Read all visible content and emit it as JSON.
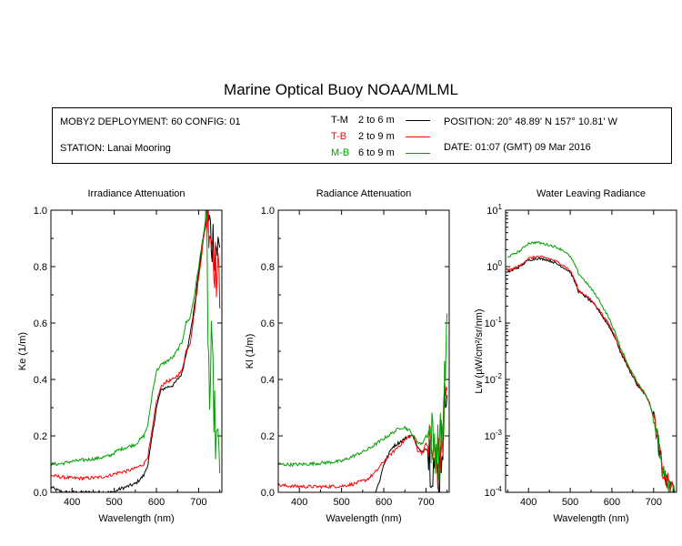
{
  "title": "Marine Optical Buoy NOAA/MLML",
  "info": {
    "deployment": "MOBY2 DEPLOYMENT: 60 CONFIG: 01",
    "station": "STATION: Lanai Mooring",
    "position": "POSITION: 20° 48.89' N   157° 10.81' W",
    "date": "DATE: 01:07 (GMT) 09 Mar 2016"
  },
  "legend": [
    {
      "code": "T-M",
      "range": "2 to 6  m",
      "color": "#000000"
    },
    {
      "code": "T-B",
      "range": "2 to 9  m",
      "color": "#ff0000"
    },
    {
      "code": "M-B",
      "range": "6 to 9  m",
      "color": "#00a000"
    }
  ],
  "chart_data": [
    {
      "type": "line",
      "title": "Irradiance Attenuation",
      "xlabel": "Wavelength (nm)",
      "ylabel": "Ke  (1/m)",
      "xlim": [
        350,
        755
      ],
      "ylim": [
        0,
        1.0
      ],
      "xticks": [
        400,
        500,
        600,
        700
      ],
      "yticks": [
        0.0,
        0.2,
        0.4,
        0.6,
        0.8,
        1.0
      ],
      "ytick_labels": [
        "0.0",
        "0.2",
        "0.4",
        "0.6",
        "0.8",
        "1.0"
      ],
      "series": [
        {
          "name": "T-M",
          "color": "#000000",
          "x": [
            350,
            360,
            370,
            380,
            400,
            430,
            460,
            490,
            500,
            510,
            530,
            550,
            570,
            580,
            590,
            600,
            610,
            620,
            640,
            660,
            680,
            690,
            700,
            710,
            720,
            725,
            730,
            740,
            750
          ],
          "y": [
            0.02,
            0.01,
            0.005,
            0.0,
            0.0,
            0.0,
            0.0,
            0.0,
            0.0,
            0.01,
            0.02,
            0.03,
            0.06,
            0.1,
            0.2,
            0.3,
            0.36,
            0.37,
            0.38,
            0.42,
            0.56,
            0.66,
            0.78,
            0.9,
            0.98,
            0.95,
            0.9,
            0.88,
            0.85
          ],
          "noise_from": 720
        },
        {
          "name": "T-B",
          "color": "#ff0000",
          "x": [
            350,
            370,
            400,
            430,
            460,
            490,
            510,
            530,
            550,
            570,
            580,
            590,
            600,
            610,
            620,
            640,
            660,
            670,
            680,
            690,
            700,
            710,
            720,
            725,
            730,
            740,
            750
          ],
          "y": [
            0.06,
            0.055,
            0.05,
            0.05,
            0.052,
            0.06,
            0.07,
            0.075,
            0.085,
            0.1,
            0.13,
            0.22,
            0.32,
            0.37,
            0.39,
            0.4,
            0.43,
            0.5,
            0.53,
            0.64,
            0.76,
            0.88,
            0.98,
            0.97,
            0.92,
            0.8,
            0.72
          ],
          "noise_from": 720
        },
        {
          "name": "M-B",
          "color": "#00a000",
          "x": [
            350,
            370,
            400,
            430,
            460,
            490,
            510,
            530,
            550,
            570,
            580,
            590,
            600,
            610,
            620,
            640,
            660,
            670,
            680,
            690,
            700,
            710,
            718,
            722,
            726,
            730,
            740,
            750
          ],
          "y": [
            0.1,
            0.1,
            0.11,
            0.115,
            0.12,
            0.13,
            0.15,
            0.16,
            0.17,
            0.2,
            0.24,
            0.35,
            0.43,
            0.45,
            0.46,
            0.48,
            0.53,
            0.6,
            0.62,
            0.7,
            0.8,
            0.9,
            0.98,
            0.6,
            0.3,
            0.5,
            0.2,
            0.1
          ],
          "noise_from": 718
        }
      ]
    },
    {
      "type": "line",
      "title": "Radiance Attenuation",
      "xlabel": "Wavelength (nm)",
      "ylabel": "Kl  (1/m)",
      "xlim": [
        350,
        755
      ],
      "ylim": [
        0,
        1.0
      ],
      "xticks": [
        400,
        500,
        600,
        700
      ],
      "yticks": [
        0.0,
        0.2,
        0.4,
        0.6,
        0.8,
        1.0
      ],
      "ytick_labels": [
        "0.0",
        "0.2",
        "0.4",
        "0.6",
        "0.8",
        "1.0"
      ],
      "series": [
        {
          "name": "T-M",
          "color": "#000000",
          "x": [
            350,
            400,
            450,
            500,
            550,
            570,
            580,
            590,
            600,
            610,
            620,
            640,
            660,
            670,
            680,
            690,
            700,
            710,
            720,
            730,
            740,
            750
          ],
          "y": [
            -0.03,
            -0.03,
            -0.03,
            -0.03,
            -0.03,
            -0.02,
            0.0,
            0.04,
            0.1,
            0.13,
            0.16,
            0.18,
            0.2,
            0.2,
            0.16,
            0.14,
            0.16,
            0.13,
            0.1,
            0.05,
            0.2,
            0.45
          ],
          "noise_from": 705
        },
        {
          "name": "T-B",
          "color": "#ff0000",
          "x": [
            350,
            380,
            420,
            460,
            500,
            530,
            560,
            580,
            600,
            620,
            640,
            650,
            660,
            670,
            680,
            690,
            700,
            710,
            720,
            730,
            740,
            750
          ],
          "y": [
            0.025,
            0.022,
            0.02,
            0.02,
            0.022,
            0.03,
            0.045,
            0.07,
            0.11,
            0.14,
            0.17,
            0.185,
            0.2,
            0.2,
            0.15,
            0.14,
            0.17,
            0.16,
            0.12,
            0.1,
            0.2,
            0.4
          ],
          "noise_from": 705
        },
        {
          "name": "M-B",
          "color": "#00a000",
          "x": [
            350,
            380,
            420,
            460,
            500,
            530,
            560,
            580,
            600,
            620,
            640,
            650,
            660,
            670,
            680,
            690,
            700,
            710,
            720,
            730,
            740,
            750
          ],
          "y": [
            0.1,
            0.098,
            0.1,
            0.105,
            0.11,
            0.13,
            0.15,
            0.17,
            0.19,
            0.21,
            0.23,
            0.23,
            0.22,
            0.2,
            0.18,
            0.17,
            0.2,
            0.2,
            0.18,
            0.15,
            0.22,
            0.6
          ],
          "noise_from": 705
        }
      ]
    },
    {
      "type": "line",
      "title": "Water Leaving Radiance",
      "xlabel": "Wavelength (nm)",
      "ylabel": "Lw  (µW/cm²/sr/nm)",
      "xlim": [
        345,
        755
      ],
      "ylim": [
        0.0001,
        10
      ],
      "yscale": "log",
      "xticks": [
        400,
        500,
        600,
        700
      ],
      "yticks": [
        0.0001,
        0.001,
        0.01,
        0.1,
        1,
        10
      ],
      "ytick_labels": [
        "10⁻⁴",
        "10⁻³",
        "10⁻²",
        "10⁻¹",
        "10⁰",
        "10¹"
      ],
      "series": [
        {
          "name": "T-M",
          "color": "#000000",
          "x": [
            350,
            360,
            380,
            400,
            420,
            440,
            460,
            480,
            500,
            510,
            520,
            530,
            540,
            560,
            580,
            600,
            620,
            640,
            660,
            670,
            680,
            700,
            710,
            720,
            730,
            740,
            750
          ],
          "y": [
            0.8,
            0.85,
            1.0,
            1.3,
            1.4,
            1.35,
            1.2,
            1.0,
            0.8,
            0.55,
            0.36,
            0.32,
            0.28,
            0.2,
            0.12,
            0.07,
            0.03,
            0.015,
            0.008,
            0.0065,
            0.0055,
            0.002,
            0.0008,
            0.00025,
            0.00015,
            0.00012,
            0.0001
          ],
          "noise_from": 700
        },
        {
          "name": "T-B",
          "color": "#ff0000",
          "x": [
            350,
            360,
            380,
            400,
            420,
            440,
            460,
            480,
            500,
            510,
            520,
            530,
            540,
            560,
            580,
            600,
            620,
            640,
            660,
            670,
            680,
            700,
            710,
            720,
            730,
            740,
            750
          ],
          "y": [
            0.85,
            0.9,
            1.05,
            1.4,
            1.5,
            1.45,
            1.3,
            1.1,
            0.85,
            0.6,
            0.38,
            0.34,
            0.3,
            0.21,
            0.13,
            0.075,
            0.032,
            0.016,
            0.0085,
            0.0068,
            0.0056,
            0.002,
            0.0008,
            0.00026,
            0.00016,
            0.00013,
            0.00011
          ],
          "noise_from": 700
        },
        {
          "name": "M-B",
          "color": "#00a000",
          "x": [
            350,
            360,
            380,
            400,
            420,
            440,
            460,
            480,
            500,
            510,
            520,
            530,
            540,
            560,
            580,
            600,
            620,
            640,
            660,
            670,
            680,
            700,
            710,
            720,
            730,
            740,
            750
          ],
          "y": [
            1.5,
            1.6,
            1.9,
            2.6,
            2.7,
            2.5,
            2.3,
            2.0,
            1.5,
            1.1,
            0.75,
            0.62,
            0.5,
            0.32,
            0.18,
            0.09,
            0.035,
            0.017,
            0.009,
            0.007,
            0.0055,
            0.002,
            0.0008,
            0.00025,
            0.00014,
            0.00011,
            0.0001
          ],
          "noise_from": 700
        }
      ]
    }
  ]
}
